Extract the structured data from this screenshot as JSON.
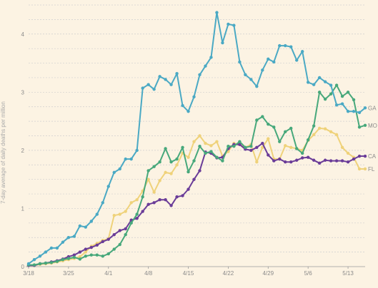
{
  "chart_data": {
    "type": "line",
    "title": "",
    "xlabel": "",
    "ylabel": "7-day average of daily deaths per million",
    "ylim": [
      0,
      4.5
    ],
    "yticks": [
      "0",
      "1",
      "2",
      "3",
      "4"
    ],
    "ytick_values": [
      0,
      1,
      2,
      3,
      4
    ],
    "x": [
      "3/18",
      "3/19",
      "3/20",
      "3/21",
      "3/22",
      "3/23",
      "3/24",
      "3/25",
      "3/26",
      "3/27",
      "3/28",
      "3/29",
      "3/30",
      "3/31",
      "4/1",
      "4/2",
      "4/3",
      "4/4",
      "4/5",
      "4/6",
      "4/7",
      "4/8",
      "4/9",
      "4/10",
      "4/11",
      "4/12",
      "4/13",
      "4/14",
      "4/15",
      "4/16",
      "4/17",
      "4/18",
      "4/19",
      "4/20",
      "4/21",
      "4/22",
      "4/23",
      "4/24",
      "4/25",
      "4/26",
      "4/27",
      "4/28",
      "4/29",
      "4/30",
      "5/1",
      "5/2",
      "5/3",
      "5/4",
      "5/5",
      "5/6",
      "5/7",
      "5/8",
      "5/9",
      "5/10",
      "5/11",
      "5/12",
      "5/13",
      "5/14",
      "5/15",
      "5/16"
    ],
    "xticks": [
      "3/18",
      "3/25",
      "4/1",
      "4/8",
      "4/15",
      "4/22",
      "4/29",
      "5/6",
      "5/13"
    ],
    "grid": true,
    "legend": "direct labels at line ends",
    "series": [
      {
        "name": "GA",
        "color": "#4aa9c4",
        "values": [
          0.05,
          0.12,
          0.18,
          0.25,
          0.32,
          0.32,
          0.42,
          0.5,
          0.52,
          0.7,
          0.68,
          0.78,
          0.9,
          1.1,
          1.38,
          1.62,
          1.68,
          1.85,
          1.85,
          2.0,
          3.07,
          3.13,
          3.05,
          3.27,
          3.22,
          3.13,
          3.32,
          2.77,
          2.67,
          2.92,
          3.3,
          3.45,
          3.6,
          4.37,
          3.85,
          4.17,
          4.15,
          3.52,
          3.3,
          3.22,
          3.1,
          3.38,
          3.57,
          3.52,
          3.8,
          3.8,
          3.78,
          3.55,
          3.7,
          3.17,
          3.13,
          3.25,
          3.18,
          3.12,
          2.78,
          2.8,
          2.67,
          2.67,
          2.65,
          2.73
        ]
      },
      {
        "name": "MO",
        "color": "#47a87b",
        "values": [
          0.03,
          0.03,
          0.05,
          0.06,
          0.07,
          0.09,
          0.12,
          0.14,
          0.16,
          0.13,
          0.18,
          0.2,
          0.2,
          0.18,
          0.22,
          0.3,
          0.38,
          0.55,
          0.75,
          0.9,
          1.2,
          1.65,
          1.72,
          1.8,
          2.03,
          1.8,
          1.85,
          2.05,
          1.63,
          1.82,
          2.07,
          1.95,
          1.98,
          1.88,
          1.82,
          2.07,
          2.07,
          2.15,
          2.05,
          2.07,
          2.52,
          2.58,
          2.45,
          2.4,
          2.15,
          2.32,
          2.38,
          2.03,
          1.95,
          2.18,
          2.42,
          3.0,
          2.88,
          2.97,
          3.12,
          2.93,
          3.0,
          2.87,
          2.4,
          2.43
        ]
      },
      {
        "name": "CA",
        "color": "#6a3c98",
        "values": [
          0.02,
          0.02,
          0.05,
          0.06,
          0.08,
          0.1,
          0.13,
          0.17,
          0.2,
          0.25,
          0.3,
          0.33,
          0.37,
          0.43,
          0.47,
          0.55,
          0.62,
          0.65,
          0.8,
          0.83,
          0.95,
          1.07,
          1.1,
          1.15,
          1.15,
          1.05,
          1.2,
          1.22,
          1.33,
          1.5,
          1.65,
          1.97,
          1.95,
          1.87,
          1.88,
          2.03,
          2.1,
          2.1,
          2.02,
          2.0,
          2.05,
          2.12,
          1.92,
          1.82,
          1.85,
          1.8,
          1.8,
          1.83,
          1.87,
          1.88,
          1.83,
          1.78,
          1.83,
          1.82,
          1.82,
          1.82,
          1.8,
          1.85,
          1.9,
          1.9
        ]
      },
      {
        "name": "FL",
        "color": "#efd27a",
        "values": [
          0.02,
          0.02,
          0.04,
          0.05,
          0.06,
          0.08,
          0.1,
          0.12,
          0.14,
          0.17,
          0.25,
          0.35,
          0.4,
          0.45,
          0.48,
          0.88,
          0.9,
          0.95,
          1.1,
          1.15,
          1.3,
          1.5,
          1.28,
          1.48,
          1.62,
          1.6,
          1.75,
          1.95,
          1.88,
          2.15,
          2.25,
          2.12,
          2.08,
          2.15,
          1.9,
          1.98,
          2.12,
          2.1,
          2.05,
          2.1,
          1.8,
          2.05,
          2.2,
          1.85,
          1.85,
          2.08,
          2.05,
          2.03,
          2.0,
          2.17,
          2.27,
          2.38,
          2.37,
          2.32,
          2.27,
          2.05,
          1.95,
          1.88,
          1.68,
          1.68
        ]
      }
    ]
  }
}
